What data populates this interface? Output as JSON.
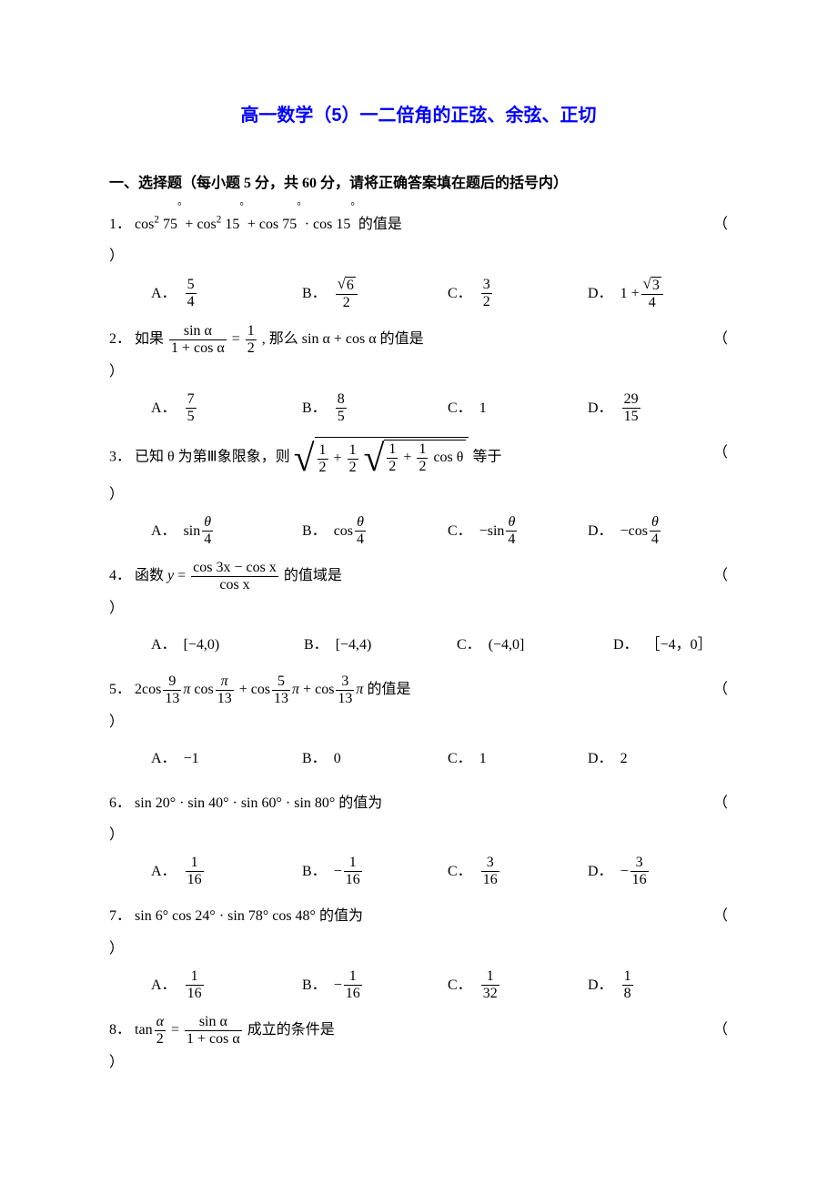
{
  "title_text": "高一数学（5）一二倍角的正弦、余弦、正切",
  "title_color": "#0000ff",
  "section_header": "一、选择题（每小题 5 分，共 60 分，请将正确答案填在题后的括号内）",
  "paren_open": "（",
  "paren_close": "）",
  "opt_labels": {
    "A": "A．",
    "B": "B．",
    "C": "C．",
    "D": "D．"
  },
  "page_bg": "#ffffff",
  "text_color": "#000000",
  "q1": {
    "num": "1．",
    "expr_parts": [
      "cos",
      "2",
      " 75° + cos",
      "2",
      " 15° + cos 75° · cos 15°"
    ],
    "tail": " 的值是",
    "opts": {
      "A": {
        "num": "5",
        "den": "4"
      },
      "B": {
        "sqrt": "6",
        "den": "2"
      },
      "C": {
        "num": "3",
        "den": "2"
      },
      "D": {
        "lead": "1 + ",
        "sqrt": "3",
        "den": "4"
      }
    }
  },
  "q2": {
    "num": "2．",
    "lead": " 如果",
    "lhs": {
      "num": "sin α",
      "den": "1 + cos α"
    },
    "eq": " = ",
    "rhs": {
      "num": "1",
      "den": "2"
    },
    "tail2": ", 那么 sin α + cos α 的值是",
    "opts": {
      "A": {
        "num": "7",
        "den": "5"
      },
      "B": {
        "num": "8",
        "den": "5"
      },
      "C_plain": "1",
      "D": {
        "num": "29",
        "den": "15"
      }
    }
  },
  "q3": {
    "num": "3．",
    "lead": "已知 θ 为第Ⅲ象限象，则 ",
    "tail": " 等于",
    "inner": {
      "a": "1",
      "b": "2",
      "c": "1",
      "d": "2",
      "e": "cos θ"
    },
    "opts": {
      "A": {
        "fn": "sin",
        "num": "θ",
        "den": "4"
      },
      "B": {
        "fn": "cos",
        "num": "θ",
        "den": "4"
      },
      "C": {
        "neg": "− ",
        "fn": "sin",
        "num": "θ",
        "den": "4"
      },
      "D": {
        "neg": "− ",
        "fn": "cos",
        "num": "θ",
        "den": "4"
      }
    }
  },
  "q4": {
    "num": "4．",
    "lead": "函数 ",
    "frac": {
      "num": "cos 3x − cos x",
      "den": "cos x"
    },
    "tail": " 的值域是",
    "opts": {
      "A": "[−4,0)",
      "B": "[−4,4)",
      "C": "(−4,0]",
      "D": "［−4，0］"
    }
  },
  "q5": {
    "num": "5．",
    "terms": {
      "a": {
        "coef": "2cos",
        "num": "9",
        "den": "13",
        "pi": "π"
      },
      "b": {
        "coef": "cos",
        "num": "π",
        "den": "13"
      },
      "plus": " + ",
      "c": {
        "coef": "cos",
        "num": "5",
        "den": "13",
        "pi": "π"
      },
      "d": {
        "coef": "cos",
        "num": "3",
        "den": "13",
        "pi": "π"
      }
    },
    "tail": " 的值是",
    "opts": {
      "A": "−1",
      "B": "0",
      "C": "1",
      "D": "2"
    }
  },
  "q6": {
    "num": "6．",
    "expr": "sin 20° · sin 40° · sin 60° · sin 80°",
    "tail": " 的值为",
    "opts": {
      "A": {
        "num": "1",
        "den": "16"
      },
      "B": {
        "neg": "− ",
        "num": "1",
        "den": "16"
      },
      "C": {
        "num": "3",
        "den": "16"
      },
      "D": {
        "neg": "− ",
        "num": "3",
        "den": "16"
      }
    }
  },
  "q7": {
    "num": "7．",
    "expr": "sin 6° cos 24° · sin 78° cos 48°",
    "tail": " 的值为",
    "opts": {
      "A": {
        "num": "1",
        "den": "16"
      },
      "B": {
        "neg": "− ",
        "num": "1",
        "den": "16"
      },
      "C": {
        "num": "1",
        "den": "32"
      },
      "D": {
        "num": "1",
        "den": "8"
      }
    }
  },
  "q8": {
    "num": "8．",
    "lhs": {
      "fn": "tan",
      "num": "α",
      "den": "2"
    },
    "eq": " = ",
    "rhs": {
      "num": "sin α",
      "den": "1 + cos α"
    },
    "tail": " 成立的条件是"
  }
}
